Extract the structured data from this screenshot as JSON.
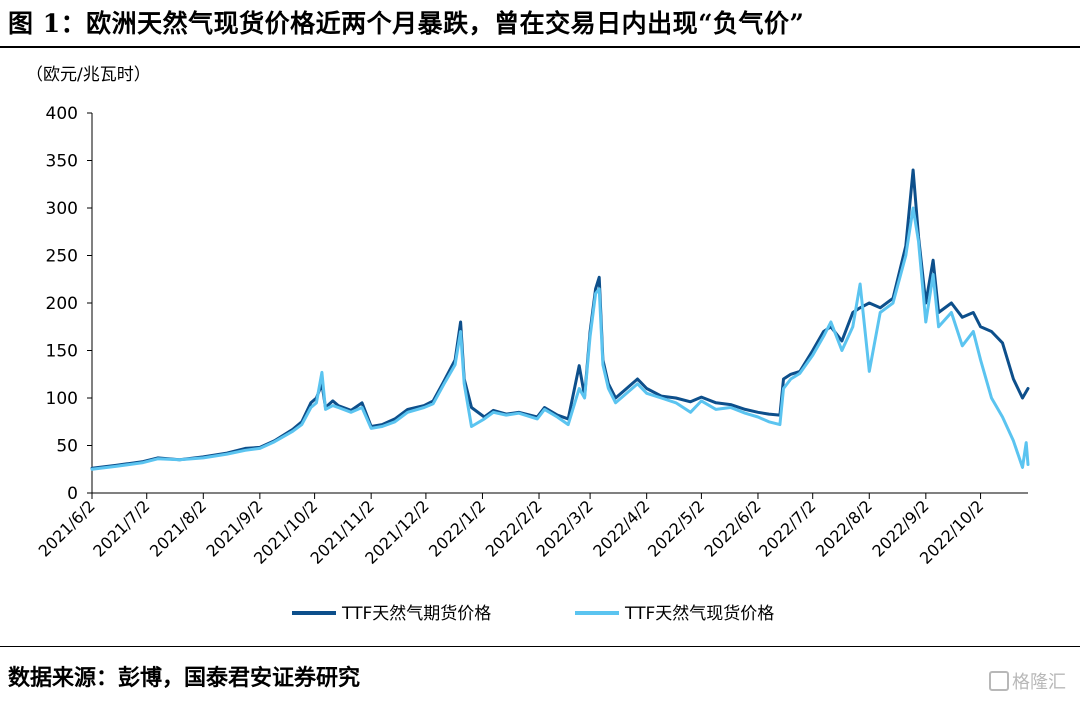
{
  "title": "图 1：欧洲天然气现货价格近两个月暴跌，曾在交易日内出现“负气价”",
  "source": "数据来源：彭博，国泰君安证券研究",
  "watermark": "格隆汇",
  "chart_data": {
    "type": "line",
    "unit": "（欧元/兆瓦时）",
    "ylim": [
      0,
      400
    ],
    "yticks": [
      0,
      50,
      100,
      150,
      200,
      250,
      300,
      350,
      400
    ],
    "xlim": [
      "2021-06-02",
      "2022-10-28"
    ],
    "xticks": [
      "2021/6/2",
      "2021/7/2",
      "2021/8/2",
      "2021/9/2",
      "2021/10/2",
      "2021/11/2",
      "2021/12/2",
      "2022/1/2",
      "2022/2/2",
      "2022/3/2",
      "2022/4/2",
      "2022/5/2",
      "2022/6/2",
      "2022/7/2",
      "2022/8/2",
      "2022/9/2",
      "2022/10/2"
    ],
    "grid": false,
    "legend": "bottom",
    "colors": {
      "futures": "#0d4f8b",
      "spot": "#5bc4f0"
    },
    "series": [
      {
        "name": "TTF天然气期货价格",
        "points": [
          [
            "2021-06-02",
            26
          ],
          [
            "2021-06-15",
            29
          ],
          [
            "2021-06-30",
            33
          ],
          [
            "2021-07-08",
            37
          ],
          [
            "2021-07-20",
            35
          ],
          [
            "2021-08-02",
            38
          ],
          [
            "2021-08-15",
            42
          ],
          [
            "2021-08-25",
            47
          ],
          [
            "2021-09-02",
            48
          ],
          [
            "2021-09-10",
            55
          ],
          [
            "2021-09-20",
            67
          ],
          [
            "2021-09-25",
            75
          ],
          [
            "2021-09-30",
            95
          ],
          [
            "2021-10-03",
            100
          ],
          [
            "2021-10-06",
            115
          ],
          [
            "2021-10-08",
            90
          ],
          [
            "2021-10-12",
            97
          ],
          [
            "2021-10-15",
            92
          ],
          [
            "2021-10-22",
            87
          ],
          [
            "2021-10-28",
            95
          ],
          [
            "2021-11-02",
            70
          ],
          [
            "2021-11-08",
            72
          ],
          [
            "2021-11-15",
            78
          ],
          [
            "2021-11-22",
            88
          ],
          [
            "2021-12-01",
            92
          ],
          [
            "2021-12-06",
            97
          ],
          [
            "2021-12-12",
            118
          ],
          [
            "2021-12-18",
            140
          ],
          [
            "2021-12-21",
            180
          ],
          [
            "2021-12-23",
            120
          ],
          [
            "2021-12-27",
            90
          ],
          [
            "2022-01-03",
            80
          ],
          [
            "2022-01-08",
            87
          ],
          [
            "2022-01-15",
            83
          ],
          [
            "2022-01-22",
            85
          ],
          [
            "2022-02-01",
            80
          ],
          [
            "2022-02-05",
            90
          ],
          [
            "2022-02-12",
            82
          ],
          [
            "2022-02-18",
            78
          ],
          [
            "2022-02-24",
            134
          ],
          [
            "2022-02-27",
            102
          ],
          [
            "2022-03-02",
            170
          ],
          [
            "2022-03-05",
            215
          ],
          [
            "2022-03-07",
            227
          ],
          [
            "2022-03-09",
            140
          ],
          [
            "2022-03-12",
            115
          ],
          [
            "2022-03-16",
            100
          ],
          [
            "2022-03-22",
            110
          ],
          [
            "2022-03-28",
            120
          ],
          [
            "2022-04-02",
            110
          ],
          [
            "2022-04-10",
            102
          ],
          [
            "2022-04-18",
            100
          ],
          [
            "2022-04-26",
            96
          ],
          [
            "2022-05-02",
            101
          ],
          [
            "2022-05-10",
            95
          ],
          [
            "2022-05-18",
            93
          ],
          [
            "2022-05-26",
            88
          ],
          [
            "2022-06-02",
            85
          ],
          [
            "2022-06-08",
            83
          ],
          [
            "2022-06-14",
            82
          ],
          [
            "2022-06-16",
            120
          ],
          [
            "2022-06-20",
            125
          ],
          [
            "2022-06-25",
            128
          ],
          [
            "2022-07-02",
            150
          ],
          [
            "2022-07-08",
            170
          ],
          [
            "2022-07-12",
            175
          ],
          [
            "2022-07-18",
            160
          ],
          [
            "2022-07-24",
            190
          ],
          [
            "2022-07-28",
            195
          ],
          [
            "2022-08-02",
            200
          ],
          [
            "2022-08-08",
            195
          ],
          [
            "2022-08-15",
            205
          ],
          [
            "2022-08-22",
            260
          ],
          [
            "2022-08-26",
            340
          ],
          [
            "2022-08-29",
            270
          ],
          [
            "2022-09-02",
            200
          ],
          [
            "2022-09-06",
            245
          ],
          [
            "2022-09-09",
            190
          ],
          [
            "2022-09-16",
            200
          ],
          [
            "2022-09-22",
            185
          ],
          [
            "2022-09-28",
            190
          ],
          [
            "2022-10-02",
            175
          ],
          [
            "2022-10-08",
            170
          ],
          [
            "2022-10-14",
            158
          ],
          [
            "2022-10-20",
            120
          ],
          [
            "2022-10-25",
            100
          ],
          [
            "2022-10-28",
            110
          ]
        ]
      },
      {
        "name": "TTF天然气现货价格",
        "points": [
          [
            "2021-06-02",
            25
          ],
          [
            "2021-06-15",
            28
          ],
          [
            "2021-06-30",
            32
          ],
          [
            "2021-07-08",
            36
          ],
          [
            "2021-07-20",
            35
          ],
          [
            "2021-08-02",
            37
          ],
          [
            "2021-08-15",
            41
          ],
          [
            "2021-08-25",
            45
          ],
          [
            "2021-09-02",
            47
          ],
          [
            "2021-09-10",
            54
          ],
          [
            "2021-09-20",
            65
          ],
          [
            "2021-09-25",
            72
          ],
          [
            "2021-09-30",
            90
          ],
          [
            "2021-10-03",
            95
          ],
          [
            "2021-10-06",
            127
          ],
          [
            "2021-10-08",
            88
          ],
          [
            "2021-10-12",
            92
          ],
          [
            "2021-10-15",
            90
          ],
          [
            "2021-10-22",
            85
          ],
          [
            "2021-10-28",
            90
          ],
          [
            "2021-11-02",
            68
          ],
          [
            "2021-11-08",
            70
          ],
          [
            "2021-11-15",
            75
          ],
          [
            "2021-11-22",
            85
          ],
          [
            "2021-12-01",
            90
          ],
          [
            "2021-12-06",
            94
          ],
          [
            "2021-12-12",
            115
          ],
          [
            "2021-12-18",
            135
          ],
          [
            "2021-12-21",
            170
          ],
          [
            "2021-12-23",
            115
          ],
          [
            "2021-12-27",
            70
          ],
          [
            "2022-01-03",
            78
          ],
          [
            "2022-01-08",
            85
          ],
          [
            "2022-01-15",
            82
          ],
          [
            "2022-01-22",
            84
          ],
          [
            "2022-02-01",
            78
          ],
          [
            "2022-02-05",
            88
          ],
          [
            "2022-02-12",
            80
          ],
          [
            "2022-02-18",
            72
          ],
          [
            "2022-02-24",
            110
          ],
          [
            "2022-02-27",
            100
          ],
          [
            "2022-03-02",
            165
          ],
          [
            "2022-03-05",
            210
          ],
          [
            "2022-03-07",
            215
          ],
          [
            "2022-03-09",
            135
          ],
          [
            "2022-03-12",
            110
          ],
          [
            "2022-03-16",
            95
          ],
          [
            "2022-03-22",
            105
          ],
          [
            "2022-03-28",
            115
          ],
          [
            "2022-04-02",
            105
          ],
          [
            "2022-04-10",
            100
          ],
          [
            "2022-04-18",
            95
          ],
          [
            "2022-04-26",
            85
          ],
          [
            "2022-05-02",
            97
          ],
          [
            "2022-05-10",
            88
          ],
          [
            "2022-05-18",
            90
          ],
          [
            "2022-05-26",
            84
          ],
          [
            "2022-06-02",
            80
          ],
          [
            "2022-06-08",
            75
          ],
          [
            "2022-06-14",
            72
          ],
          [
            "2022-06-16",
            110
          ],
          [
            "2022-06-20",
            120
          ],
          [
            "2022-06-25",
            126
          ],
          [
            "2022-07-02",
            145
          ],
          [
            "2022-07-08",
            165
          ],
          [
            "2022-07-12",
            180
          ],
          [
            "2022-07-18",
            150
          ],
          [
            "2022-07-24",
            175
          ],
          [
            "2022-07-28",
            220
          ],
          [
            "2022-08-02",
            128
          ],
          [
            "2022-08-08",
            190
          ],
          [
            "2022-08-15",
            200
          ],
          [
            "2022-08-22",
            250
          ],
          [
            "2022-08-26",
            300
          ],
          [
            "2022-08-29",
            265
          ],
          [
            "2022-09-02",
            180
          ],
          [
            "2022-09-06",
            230
          ],
          [
            "2022-09-09",
            175
          ],
          [
            "2022-09-16",
            190
          ],
          [
            "2022-09-22",
            155
          ],
          [
            "2022-09-28",
            170
          ],
          [
            "2022-10-02",
            140
          ],
          [
            "2022-10-08",
            100
          ],
          [
            "2022-10-14",
            80
          ],
          [
            "2022-10-20",
            55
          ],
          [
            "2022-10-25",
            27
          ],
          [
            "2022-10-27",
            53
          ],
          [
            "2022-10-28",
            30
          ]
        ]
      }
    ]
  }
}
